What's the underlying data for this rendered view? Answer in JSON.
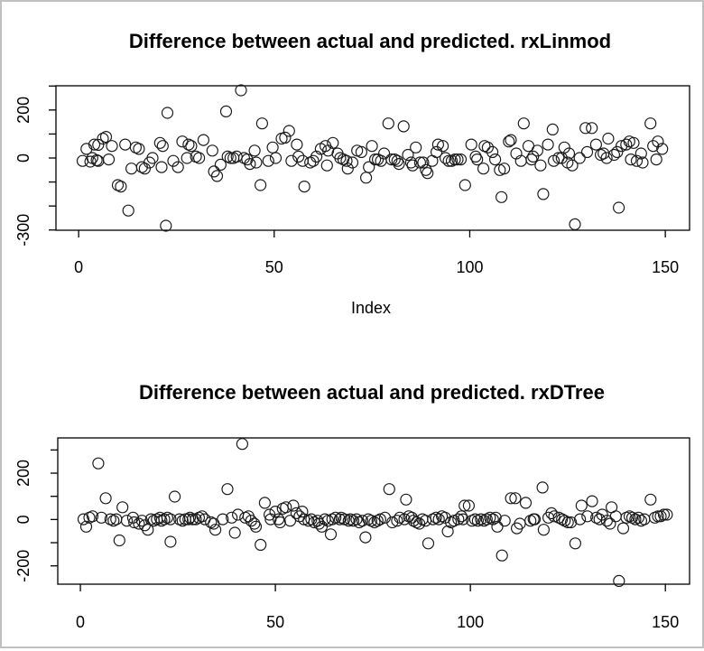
{
  "window": {
    "background": "#ffffff",
    "border_color": "#c0c0c0",
    "marker_color": "#1c1c1c",
    "axis_color": "#000000"
  },
  "chart_data": [
    {
      "type": "scatter",
      "title": "Difference between actual and predicted. rxLinmod",
      "xlabel": "Index",
      "ylabel": "",
      "grid": false,
      "legend": "none",
      "marker": "open-circle",
      "xlim": [
        -5.8,
        156.2
      ],
      "ylim": [
        -301,
        301
      ],
      "x_ticks": [
        0,
        50,
        100,
        150
      ],
      "x_tick_labels": [
        "0",
        "50",
        "100",
        "150"
      ],
      "y_ticks": [
        300,
        200,
        100,
        0,
        -100,
        -200,
        -300
      ],
      "y_tick_labels": [
        "",
        "200",
        "",
        "0",
        "",
        "",
        "-300"
      ],
      "points": [
        [
          1,
          -12
        ],
        [
          2,
          38
        ],
        [
          3,
          -15
        ],
        [
          3.5,
          0
        ],
        [
          4,
          56
        ],
        [
          4.6,
          -9
        ],
        [
          5,
          -12
        ],
        [
          5,
          55
        ],
        [
          6.2,
          81
        ],
        [
          7,
          88
        ],
        [
          7.7,
          -6
        ],
        [
          8.5,
          50
        ],
        [
          10,
          -113
        ],
        [
          10.8,
          -119
        ],
        [
          11.9,
          56
        ],
        [
          12.7,
          -219
        ],
        [
          13.5,
          -44
        ],
        [
          14.6,
          44
        ],
        [
          15.4,
          38
        ],
        [
          16.2,
          -38
        ],
        [
          16.9,
          -44
        ],
        [
          18.1,
          -19
        ],
        [
          18.9,
          0
        ],
        [
          20.8,
          63
        ],
        [
          21.2,
          -38
        ],
        [
          21.5,
          50
        ],
        [
          22.3,
          -282
        ],
        [
          22.7,
          188
        ],
        [
          24.2,
          -12
        ],
        [
          25.4,
          -38
        ],
        [
          26.5,
          69
        ],
        [
          27.7,
          0
        ],
        [
          28.1,
          56
        ],
        [
          28.8,
          50
        ],
        [
          30,
          6
        ],
        [
          30.8,
          0
        ],
        [
          31.9,
          75
        ],
        [
          34.2,
          31
        ],
        [
          34.6,
          -56
        ],
        [
          35.4,
          -75
        ],
        [
          36.3,
          -28
        ],
        [
          37.7,
          194
        ],
        [
          38.1,
          6
        ],
        [
          38.8,
          0
        ],
        [
          39.6,
          0
        ],
        [
          40.4,
          6
        ],
        [
          41.5,
          282
        ],
        [
          42.3,
          0
        ],
        [
          43.1,
          -6
        ],
        [
          43.8,
          -25
        ],
        [
          45,
          31
        ],
        [
          45.4,
          -19
        ],
        [
          46.5,
          -113
        ],
        [
          46.9,
          144
        ],
        [
          48.5,
          -12
        ],
        [
          49.6,
          44
        ],
        [
          50.4,
          0
        ],
        [
          51.9,
          81
        ],
        [
          52.8,
          85
        ],
        [
          53.8,
          113
        ],
        [
          54.4,
          -12
        ],
        [
          55.8,
          56
        ],
        [
          56.2,
          6
        ],
        [
          57.3,
          -12
        ],
        [
          57.7,
          -119
        ],
        [
          59.2,
          -19
        ],
        [
          60,
          -12
        ],
        [
          60.8,
          6
        ],
        [
          61.9,
          38
        ],
        [
          63.1,
          50
        ],
        [
          63.8,
          31
        ],
        [
          63.5,
          -31
        ],
        [
          65,
          63
        ],
        [
          66.2,
          19
        ],
        [
          66.9,
          0
        ],
        [
          67.7,
          -6
        ],
        [
          68.5,
          -12
        ],
        [
          68.8,
          -44
        ],
        [
          70,
          -19
        ],
        [
          71.2,
          31
        ],
        [
          72.3,
          25
        ],
        [
          73.5,
          -82
        ],
        [
          74.2,
          -38
        ],
        [
          75,
          50
        ],
        [
          75.8,
          -6
        ],
        [
          76.5,
          -6
        ],
        [
          77.3,
          -12
        ],
        [
          78.1,
          19
        ],
        [
          79.2,
          144
        ],
        [
          80,
          -6
        ],
        [
          80.8,
          -6
        ],
        [
          81.5,
          -12
        ],
        [
          81.9,
          -25
        ],
        [
          83.1,
          132
        ],
        [
          84.2,
          13
        ],
        [
          85,
          -19
        ],
        [
          85.4,
          -31
        ],
        [
          86.2,
          44
        ],
        [
          87.3,
          -19
        ],
        [
          88.1,
          -19
        ],
        [
          88.8,
          -50
        ],
        [
          89.2,
          -63
        ],
        [
          90.4,
          -12
        ],
        [
          91.5,
          25
        ],
        [
          91.9,
          56
        ],
        [
          93.1,
          50
        ],
        [
          93.8,
          0
        ],
        [
          94.6,
          -12
        ],
        [
          95.4,
          -12
        ],
        [
          96.2,
          -6
        ],
        [
          96.9,
          -6
        ],
        [
          97.7,
          -6
        ],
        [
          98.8,
          -113
        ],
        [
          100.4,
          56
        ],
        [
          101.5,
          6
        ],
        [
          101.9,
          -6
        ],
        [
          103.5,
          -44
        ],
        [
          103.8,
          50
        ],
        [
          104.6,
          44
        ],
        [
          105.8,
          25
        ],
        [
          106.5,
          -6
        ],
        [
          107.7,
          -50
        ],
        [
          108.1,
          -163
        ],
        [
          108.8,
          -44
        ],
        [
          110,
          69
        ],
        [
          110.5,
          75
        ],
        [
          111.9,
          19
        ],
        [
          113.1,
          -12
        ],
        [
          113.8,
          144
        ],
        [
          115,
          50
        ],
        [
          115.8,
          -6
        ],
        [
          116.2,
          6
        ],
        [
          117.3,
          31
        ],
        [
          118.1,
          -31
        ],
        [
          118.8,
          -150
        ],
        [
          120,
          56
        ],
        [
          121.2,
          119
        ],
        [
          121.5,
          -12
        ],
        [
          122.7,
          0
        ],
        [
          123.5,
          0
        ],
        [
          124.2,
          44
        ],
        [
          125.4,
          19
        ],
        [
          125,
          -19
        ],
        [
          126.2,
          -31
        ],
        [
          126.9,
          -276
        ],
        [
          128.1,
          0
        ],
        [
          129.6,
          125
        ],
        [
          130,
          25
        ],
        [
          131.2,
          125
        ],
        [
          132.3,
          56
        ],
        [
          133.5,
          13
        ],
        [
          134.2,
          19
        ],
        [
          135,
          0
        ],
        [
          135.4,
          81
        ],
        [
          136.9,
          13
        ],
        [
          137.7,
          25
        ],
        [
          138.1,
          -207
        ],
        [
          138.8,
          50
        ],
        [
          140,
          56
        ],
        [
          140.8,
          69
        ],
        [
          141.2,
          -6
        ],
        [
          141.9,
          63
        ],
        [
          142.7,
          -12
        ],
        [
          143.8,
          19
        ],
        [
          144.2,
          -19
        ],
        [
          146.2,
          144
        ],
        [
          146.9,
          50
        ],
        [
          147.7,
          -6
        ],
        [
          148.1,
          69
        ],
        [
          149.2,
          38
        ]
      ]
    },
    {
      "type": "scatter",
      "title": "Difference between actual and predicted. rxDTree",
      "xlabel": "",
      "ylabel": "",
      "grid": false,
      "legend": "none",
      "marker": "open-circle",
      "xlim": [
        -5.8,
        156.2
      ],
      "ylim": [
        -279,
        352
      ],
      "x_ticks": [
        0,
        50,
        100,
        150
      ],
      "x_tick_labels": [
        "0",
        "50",
        "100",
        "150"
      ],
      "y_ticks": [
        300,
        200,
        100,
        0,
        -100,
        -200
      ],
      "y_tick_labels": [
        "",
        "200",
        "",
        "0",
        "",
        "-200"
      ],
      "points": [
        [
          0.8,
          1
        ],
        [
          1.5,
          -31
        ],
        [
          2.3,
          8
        ],
        [
          3.1,
          14
        ],
        [
          4.6,
          242
        ],
        [
          5.4,
          8
        ],
        [
          6.5,
          92
        ],
        [
          7.7,
          1
        ],
        [
          8.5,
          -5
        ],
        [
          9.2,
          1
        ],
        [
          10,
          -90
        ],
        [
          10.8,
          53
        ],
        [
          11.9,
          -5
        ],
        [
          13.5,
          8
        ],
        [
          13.8,
          -12
        ],
        [
          15,
          -18
        ],
        [
          15.8,
          -5
        ],
        [
          16.5,
          -25
        ],
        [
          17.3,
          -44
        ],
        [
          18.1,
          1
        ],
        [
          18.8,
          -5
        ],
        [
          19.6,
          1
        ],
        [
          20.4,
          8
        ],
        [
          20.8,
          -5
        ],
        [
          21.5,
          1
        ],
        [
          22.3,
          8
        ],
        [
          23.1,
          1
        ],
        [
          23.1,
          -96
        ],
        [
          24.2,
          99
        ],
        [
          25.4,
          1
        ],
        [
          26.2,
          -5
        ],
        [
          26.9,
          1
        ],
        [
          27.7,
          1
        ],
        [
          28.1,
          8
        ],
        [
          28.8,
          1
        ],
        [
          29.6,
          1
        ],
        [
          30.4,
          8
        ],
        [
          31.2,
          14
        ],
        [
          31.9,
          1
        ],
        [
          33.5,
          -12
        ],
        [
          34.2,
          -18
        ],
        [
          34.6,
          -44
        ],
        [
          36.5,
          1
        ],
        [
          37.7,
          131
        ],
        [
          38.8,
          8
        ],
        [
          39.6,
          -57
        ],
        [
          40.4,
          21
        ],
        [
          41.5,
          326
        ],
        [
          42.3,
          8
        ],
        [
          43.1,
          14
        ],
        [
          43.8,
          -5
        ],
        [
          44.6,
          -18
        ],
        [
          45,
          -31
        ],
        [
          46.2,
          -109
        ],
        [
          47.3,
          72
        ],
        [
          48.5,
          21
        ],
        [
          48.8,
          1
        ],
        [
          50,
          34
        ],
        [
          50.8,
          1
        ],
        [
          51.2,
          -12
        ],
        [
          51.9,
          47
        ],
        [
          52.7,
          53
        ],
        [
          53.8,
          -5
        ],
        [
          54.6,
          60
        ],
        [
          55.4,
          27
        ],
        [
          56.2,
          14
        ],
        [
          56.9,
          34
        ],
        [
          57.3,
          1
        ],
        [
          58.5,
          -5
        ],
        [
          59.2,
          1
        ],
        [
          60,
          -12
        ],
        [
          60.8,
          -5
        ],
        [
          61.2,
          -18
        ],
        [
          61.9,
          -31
        ],
        [
          62.7,
          1
        ],
        [
          63.5,
          -5
        ],
        [
          64.2,
          -64
        ],
        [
          64.6,
          1
        ],
        [
          65.4,
          8
        ],
        [
          66.5,
          1
        ],
        [
          66.9,
          8
        ],
        [
          67.7,
          1
        ],
        [
          68.8,
          -5
        ],
        [
          69.2,
          1
        ],
        [
          70,
          -5
        ],
        [
          70.8,
          1
        ],
        [
          71.5,
          -12
        ],
        [
          72.3,
          -5
        ],
        [
          73.1,
          -77
        ],
        [
          73.8,
          1
        ],
        [
          74.6,
          -5
        ],
        [
          75.4,
          -12
        ],
        [
          76.2,
          -5
        ],
        [
          76.9,
          1
        ],
        [
          78.1,
          8
        ],
        [
          79.2,
          131
        ],
        [
          80,
          -12
        ],
        [
          81.2,
          -5
        ],
        [
          81.9,
          8
        ],
        [
          83.1,
          1
        ],
        [
          83.5,
          86
        ],
        [
          84.2,
          14
        ],
        [
          85,
          8
        ],
        [
          85.4,
          -5
        ],
        [
          86.2,
          -12
        ],
        [
          86.9,
          -18
        ],
        [
          87.7,
          1
        ],
        [
          88.5,
          -5
        ],
        [
          89.2,
          -103
        ],
        [
          90.4,
          1
        ],
        [
          91.2,
          8
        ],
        [
          91.9,
          1
        ],
        [
          92.7,
          14
        ],
        [
          93.5,
          8
        ],
        [
          94.2,
          -51
        ],
        [
          95,
          -12
        ],
        [
          95.8,
          -5
        ],
        [
          96.9,
          1
        ],
        [
          97.7,
          14
        ],
        [
          98.1,
          1
        ],
        [
          98.5,
          60
        ],
        [
          99.6,
          60
        ],
        [
          100.4,
          -5
        ],
        [
          101.2,
          1
        ],
        [
          101.9,
          -5
        ],
        [
          102.7,
          1
        ],
        [
          103.5,
          -5
        ],
        [
          104.2,
          1
        ],
        [
          105,
          8
        ],
        [
          105.8,
          1
        ],
        [
          106.5,
          8
        ],
        [
          106.9,
          -31
        ],
        [
          108.1,
          -155
        ],
        [
          108.8,
          -5
        ],
        [
          110.4,
          92
        ],
        [
          111.5,
          92
        ],
        [
          111.9,
          -38
        ],
        [
          112.7,
          -18
        ],
        [
          114.2,
          72
        ],
        [
          115.4,
          -5
        ],
        [
          116.2,
          1
        ],
        [
          116.5,
          1
        ],
        [
          118.5,
          138
        ],
        [
          118.8,
          -44
        ],
        [
          120,
          8
        ],
        [
          120.8,
          27
        ],
        [
          121.5,
          14
        ],
        [
          122.7,
          8
        ],
        [
          123.5,
          1
        ],
        [
          124.2,
          -5
        ],
        [
          125,
          -12
        ],
        [
          125.8,
          -12
        ],
        [
          126.9,
          -103
        ],
        [
          128.1,
          1
        ],
        [
          128.5,
          60
        ],
        [
          130,
          14
        ],
        [
          131.2,
          79
        ],
        [
          132.3,
          8
        ],
        [
          133.1,
          1
        ],
        [
          133.8,
          21
        ],
        [
          135,
          -5
        ],
        [
          135.8,
          -18
        ],
        [
          136.2,
          53
        ],
        [
          137.3,
          14
        ],
        [
          138.1,
          -265
        ],
        [
          139.2,
          -38
        ],
        [
          140,
          8
        ],
        [
          140.8,
          14
        ],
        [
          141.5,
          8
        ],
        [
          142.3,
          1
        ],
        [
          143.1,
          8
        ],
        [
          143.8,
          -5
        ],
        [
          144.6,
          1
        ],
        [
          146.2,
          86
        ],
        [
          147.3,
          8
        ],
        [
          148.1,
          14
        ],
        [
          148.8,
          14
        ],
        [
          149.6,
          21
        ],
        [
          150.4,
          21
        ]
      ]
    }
  ]
}
